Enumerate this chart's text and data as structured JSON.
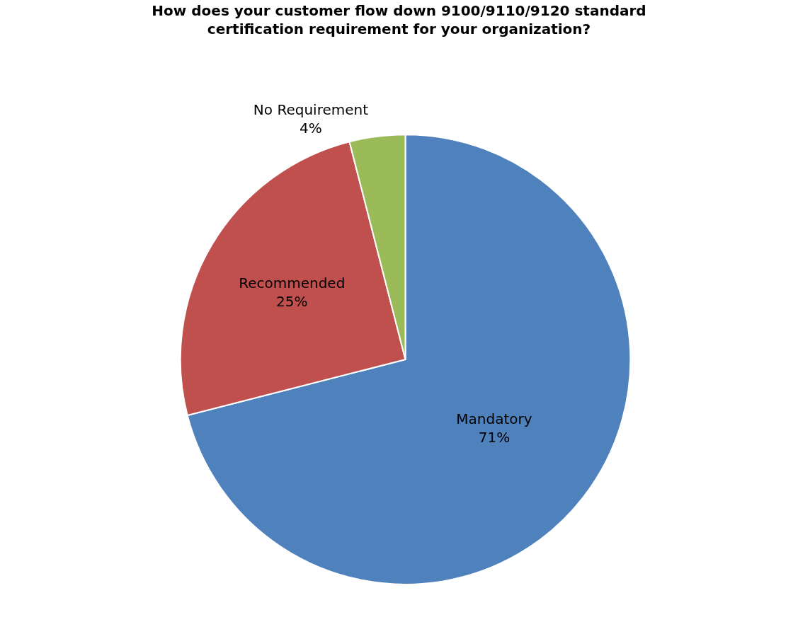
{
  "chart_data": {
    "type": "pie",
    "title": "How does your customer flow down 9100/9110/9120 standard certification requirement for your organization?",
    "categories": [
      "Mandatory",
      "Recommended",
      "No Requirement"
    ],
    "values": [
      71,
      25,
      4
    ],
    "colors": [
      "#4f81bd",
      "#c0504d",
      "#9bbb59"
    ],
    "value_labels": [
      "71%",
      "25%",
      "4%"
    ],
    "legend": false
  }
}
